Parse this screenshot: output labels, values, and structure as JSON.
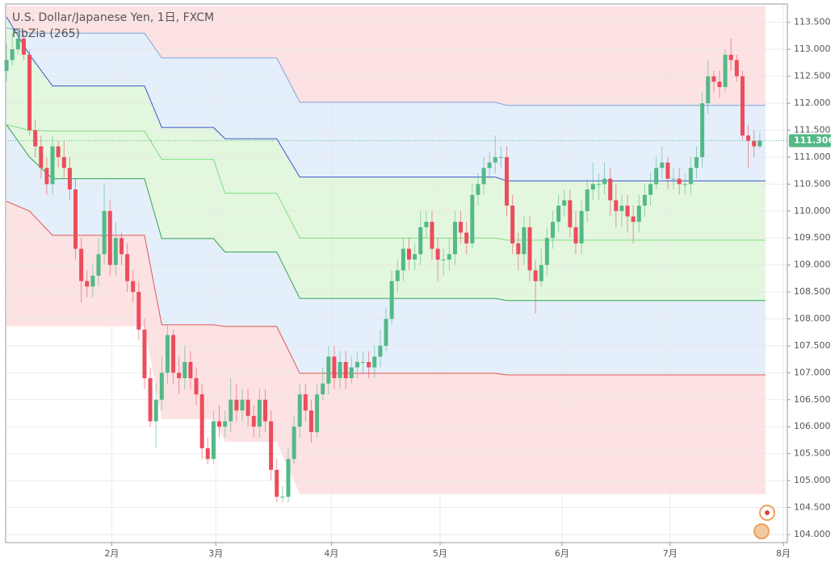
{
  "chart_data": {
    "type": "candlestick",
    "title": "U.S. Dollar/Japanese Yen, 1日, FXCM",
    "up_color": "#53b987",
    "down_color": "#eb4d5c",
    "open": [
      112.6,
      112.8,
      113.0,
      113.2,
      112.9,
      111.5,
      111.2,
      110.8,
      110.5,
      111.2,
      111.0,
      110.8,
      110.4,
      109.3,
      108.7,
      108.6,
      108.8,
      109.2,
      110.0,
      109.0,
      109.5,
      109.2,
      108.7,
      108.5,
      107.8,
      106.9,
      106.1,
      106.5,
      107.0,
      107.7,
      107.0,
      106.9,
      107.2,
      106.9,
      106.6,
      105.6,
      105.4,
      106.1,
      106.0,
      106.1,
      106.5,
      106.3,
      106.5,
      106.2,
      106.0,
      106.5,
      106.1,
      105.2,
      104.7,
      104.7,
      105.4,
      106.0,
      106.6,
      106.3,
      105.9,
      106.6,
      106.8,
      107.3,
      106.9,
      107.2,
      106.9,
      107.1,
      107.2,
      107.2,
      107.1,
      107.3,
      107.5,
      108.0,
      108.7,
      108.9,
      109.3,
      109.1,
      109.2,
      109.7,
      109.8,
      109.3,
      109.1,
      109.1,
      109.2,
      109.8,
      109.6,
      109.4,
      110.3,
      110.5,
      110.8,
      110.9,
      111.0,
      111.0,
      110.1,
      109.4,
      109.2,
      109.7,
      108.9,
      108.7,
      109.0,
      109.5,
      109.8,
      110.1,
      110.2,
      109.7,
      109.4,
      110.0,
      110.4,
      110.5,
      110.5,
      110.6,
      110.2,
      110.0,
      110.1,
      109.9,
      109.8,
      110.1,
      110.3,
      110.5,
      110.8,
      110.9,
      110.6,
      110.6,
      110.5,
      110.5,
      110.8,
      111.0,
      112.0,
      112.5,
      112.4,
      112.3,
      112.9,
      112.8,
      112.5,
      111.4,
      111.3,
      111.2
    ],
    "high": [
      113.1,
      113.3,
      113.4,
      113.3,
      113.0,
      111.7,
      111.4,
      111.0,
      111.4,
      111.3,
      111.3,
      111.0,
      110.6,
      109.5,
      108.9,
      109.0,
      109.5,
      110.5,
      110.2,
      109.8,
      109.6,
      109.4,
      108.9,
      108.7,
      108.0,
      107.1,
      106.8,
      107.3,
      107.9,
      107.8,
      107.3,
      107.5,
      107.4,
      107.1,
      106.8,
      105.8,
      106.3,
      106.4,
      106.3,
      106.9,
      106.8,
      106.7,
      106.7,
      106.4,
      106.7,
      106.7,
      106.3,
      105.4,
      104.9,
      105.6,
      106.2,
      106.8,
      106.8,
      106.5,
      106.8,
      107.1,
      107.5,
      107.5,
      107.4,
      107.4,
      107.3,
      107.4,
      107.4,
      107.4,
      107.5,
      107.8,
      108.2,
      108.9,
      109.1,
      109.5,
      109.5,
      109.4,
      110.0,
      110.0,
      110.0,
      109.5,
      109.3,
      109.5,
      110.0,
      110.0,
      109.8,
      110.5,
      110.7,
      111.0,
      111.1,
      111.4,
      111.2,
      111.2,
      110.3,
      109.6,
      109.9,
      109.9,
      109.1,
      109.3,
      109.7,
      110.0,
      110.3,
      110.4,
      110.4,
      110.0,
      110.2,
      110.6,
      110.9,
      110.7,
      110.9,
      110.8,
      110.5,
      110.3,
      110.3,
      110.1,
      110.3,
      110.5,
      110.7,
      111.0,
      111.2,
      111.0,
      110.8,
      110.8,
      110.7,
      111.0,
      111.2,
      112.2,
      112.8,
      112.6,
      112.6,
      113.0,
      113.2,
      112.9,
      112.6,
      111.6,
      111.5,
      111.45
    ],
    "low": [
      112.4,
      112.7,
      112.9,
      112.8,
      111.4,
      111.0,
      110.6,
      110.3,
      110.3,
      110.8,
      110.6,
      110.2,
      109.1,
      108.3,
      108.4,
      108.4,
      108.6,
      109.0,
      108.8,
      108.8,
      109.0,
      108.5,
      108.3,
      107.6,
      106.7,
      106.0,
      105.6,
      106.3,
      106.8,
      106.8,
      106.6,
      106.7,
      106.7,
      106.4,
      105.4,
      105.3,
      105.3,
      105.8,
      105.8,
      105.9,
      106.1,
      106.1,
      106.0,
      105.8,
      105.8,
      105.9,
      105.0,
      104.6,
      104.6,
      104.6,
      105.3,
      105.8,
      106.1,
      105.7,
      105.8,
      106.5,
      106.6,
      106.7,
      106.7,
      106.7,
      106.8,
      106.9,
      107.0,
      106.9,
      106.9,
      107.1,
      107.4,
      107.9,
      108.5,
      108.7,
      108.9,
      108.9,
      109.0,
      109.5,
      109.1,
      108.7,
      108.8,
      108.9,
      109.0,
      109.4,
      109.2,
      109.3,
      110.1,
      110.3,
      110.6,
      110.7,
      110.8,
      109.9,
      109.2,
      108.9,
      109.0,
      108.7,
      108.1,
      108.6,
      108.8,
      109.3,
      109.6,
      109.9,
      109.5,
      109.2,
      109.2,
      109.8,
      110.2,
      110.2,
      110.3,
      109.9,
      109.7,
      109.7,
      109.6,
      109.4,
      109.6,
      109.9,
      110.1,
      110.4,
      110.6,
      110.4,
      110.4,
      110.3,
      110.3,
      110.3,
      110.6,
      110.8,
      111.8,
      112.2,
      112.1,
      112.2,
      112.6,
      112.4,
      111.3,
      110.8,
      111.0,
      111.15
    ],
    "close": [
      112.8,
      113.0,
      113.2,
      112.9,
      111.5,
      111.2,
      110.8,
      110.5,
      111.2,
      111.0,
      110.8,
      110.4,
      109.3,
      108.7,
      108.6,
      108.8,
      109.2,
      110.0,
      109.0,
      109.5,
      109.2,
      108.7,
      108.5,
      107.8,
      106.9,
      106.1,
      106.5,
      107.0,
      107.7,
      107.0,
      106.9,
      107.2,
      106.9,
      106.6,
      105.6,
      105.4,
      106.1,
      106.0,
      106.1,
      106.5,
      106.3,
      106.5,
      106.2,
      106.0,
      106.5,
      106.1,
      105.2,
      104.7,
      104.7,
      105.4,
      106.0,
      106.6,
      106.3,
      105.9,
      106.6,
      106.8,
      107.3,
      106.9,
      107.2,
      106.9,
      107.1,
      107.2,
      107.2,
      107.1,
      107.3,
      107.5,
      108.0,
      108.7,
      108.9,
      109.3,
      109.1,
      109.2,
      109.7,
      109.8,
      109.3,
      109.1,
      109.1,
      109.2,
      109.8,
      109.6,
      109.4,
      110.3,
      110.5,
      110.8,
      110.9,
      111.0,
      111.0,
      110.1,
      109.4,
      109.2,
      109.7,
      108.9,
      108.7,
      109.0,
      109.5,
      109.8,
      110.1,
      110.2,
      109.7,
      109.4,
      110.0,
      110.4,
      110.5,
      110.5,
      110.6,
      110.2,
      110.0,
      110.1,
      109.9,
      109.8,
      110.1,
      110.3,
      110.5,
      110.8,
      110.9,
      110.6,
      110.6,
      110.5,
      110.5,
      110.8,
      111.0,
      112.0,
      112.5,
      112.4,
      112.3,
      112.9,
      112.8,
      112.5,
      111.4,
      111.3,
      111.2,
      111.306
    ],
    "last_price": 111.306,
    "last_color": "#53b987",
    "indicator": {
      "name": "FibZia (265)",
      "x": [
        0,
        4,
        8,
        24,
        27,
        36,
        38,
        47,
        51,
        85,
        87,
        132
      ],
      "levels": [
        {
          "values": [
            113.8,
            113.8,
            113.8,
            113.8,
            113.8,
            113.8,
            113.8,
            113.8,
            113.8,
            113.8,
            113.8,
            113.8
          ]
        },
        {
          "color": "#7ea6e0",
          "values": [
            113.4,
            113.3,
            113.3,
            113.3,
            112.84,
            112.84,
            112.84,
            112.84,
            112.02,
            112.02,
            111.96,
            111.96
          ]
        },
        {
          "color": "#3a55c8",
          "values": [
            113.6,
            112.9,
            112.32,
            112.32,
            111.55,
            111.55,
            111.34,
            111.34,
            110.63,
            110.63,
            110.56,
            110.56
          ]
        },
        {
          "color": "#7ddf7d",
          "values": [
            111.6,
            111.5,
            111.48,
            111.48,
            110.96,
            110.96,
            110.33,
            110.33,
            109.5,
            109.5,
            109.46,
            109.46
          ]
        },
        {
          "color": "#2ea54c",
          "values": [
            111.6,
            111.0,
            110.6,
            110.6,
            109.49,
            109.49,
            109.24,
            109.24,
            108.38,
            108.38,
            108.34,
            108.34
          ]
        },
        {
          "color": "#e05555",
          "values": [
            110.18,
            110.0,
            109.55,
            109.55,
            107.89,
            107.89,
            107.86,
            107.86,
            106.99,
            106.99,
            106.96,
            106.96
          ]
        },
        {
          "values": [
            107.86,
            107.86,
            107.86,
            107.86,
            106.14,
            106.14,
            105.72,
            105.72,
            104.75,
            104.75,
            104.75,
            104.75
          ]
        }
      ],
      "fills": [
        "#fde2e3",
        "#e4effb",
        "#e3f7df",
        "#e3f7df",
        "#e4effb",
        "#fde2e3"
      ]
    },
    "xlim": [
      -0.15,
      135.8
    ],
    "xticks": [
      {
        "value": 18.3,
        "label": "2月"
      },
      {
        "value": 36.4,
        "label": "3月"
      },
      {
        "value": 56.5,
        "label": "4月"
      },
      {
        "value": 75.4,
        "label": "5月"
      },
      {
        "value": 96.6,
        "label": "6月"
      },
      {
        "value": 115.4,
        "label": "7月"
      },
      {
        "value": 135.1,
        "label": "8月"
      }
    ],
    "ylim": [
      103.85,
      113.84
    ],
    "yticks": [
      {
        "value": 104.0,
        "label": "104.000"
      },
      {
        "value": 104.5,
        "label": "104.500"
      },
      {
        "value": 105.0,
        "label": "105.000"
      },
      {
        "value": 105.5,
        "label": "105.500"
      },
      {
        "value": 106.0,
        "label": "106.000"
      },
      {
        "value": 106.5,
        "label": "106.500"
      },
      {
        "value": 107.0,
        "label": "107.000"
      },
      {
        "value": 107.5,
        "label": "107.500"
      },
      {
        "value": 108.0,
        "label": "108.000"
      },
      {
        "value": 108.5,
        "label": "108.500"
      },
      {
        "value": 109.0,
        "label": "109.000"
      },
      {
        "value": 109.5,
        "label": "109.500"
      },
      {
        "value": 110.0,
        "label": "110.000"
      },
      {
        "value": 110.5,
        "label": "110.500"
      },
      {
        "value": 111.0,
        "label": "111.000"
      },
      {
        "value": 111.5,
        "label": "111.500"
      },
      {
        "value": 112.0,
        "label": "112.000"
      },
      {
        "value": 112.5,
        "label": "112.500"
      },
      {
        "value": 113.0,
        "label": "113.000"
      },
      {
        "value": 113.5,
        "label": "113.500"
      }
    ],
    "grid": true
  }
}
